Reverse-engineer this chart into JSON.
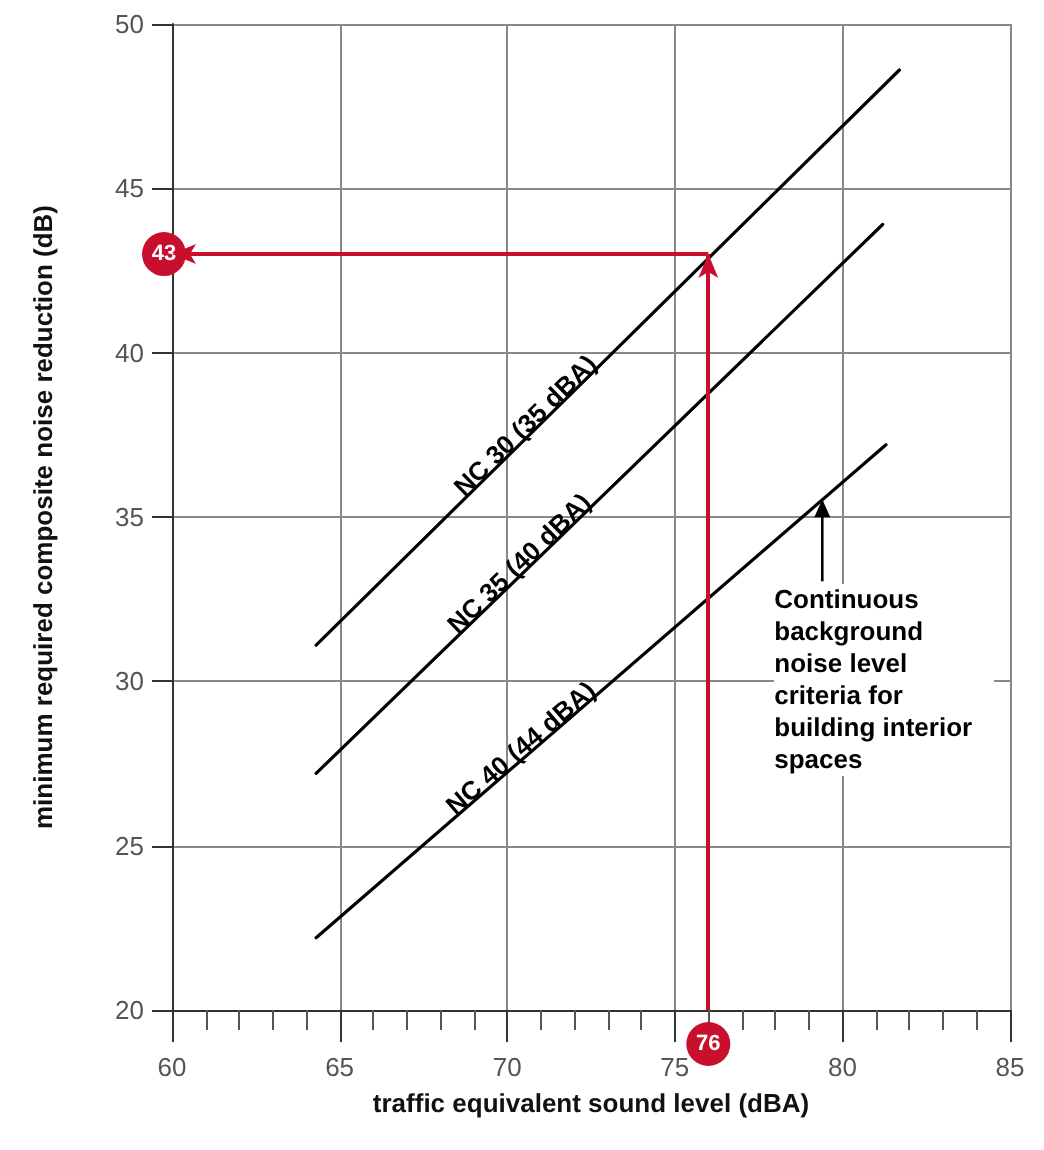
{
  "chart_data": {
    "type": "line",
    "xlabel": "traffic equivalent sound level (dBA)",
    "ylabel": "minimum required composite noise reduction (dB)",
    "xlim": [
      60,
      85
    ],
    "xticks": [
      60,
      65,
      70,
      75,
      80,
      85
    ],
    "ylim": [
      20,
      50
    ],
    "yticks": [
      20,
      25,
      30,
      35,
      40,
      45,
      50
    ],
    "grid": true,
    "legend": false,
    "marker": "none",
    "line_style": "solid",
    "series": [
      {
        "name": "NC 30 (35 dBA)",
        "color": "#000000",
        "x": [
          64.3,
          81.7
        ],
        "values": [
          31.1,
          48.6
        ]
      },
      {
        "name": "NC 35 (40 dBA)",
        "color": "#000000",
        "x": [
          64.3,
          81.2
        ],
        "values": [
          27.2,
          43.9
        ]
      },
      {
        "name": "NC 40 (44 dBA)",
        "color": "#000000",
        "x": [
          64.3,
          81.3
        ],
        "values": [
          22.2,
          37.2
        ]
      }
    ],
    "ref_lines": [
      {
        "axis": "x",
        "value": 76,
        "label": "76",
        "color": "#c8102e"
      },
      {
        "axis": "y",
        "value": 43,
        "label": "43",
        "color": "#c8102e"
      }
    ],
    "annotations": [
      {
        "text": "Continuous background noise level criteria for building interior spaces",
        "x": 79.4,
        "y": 35.6
      }
    ]
  }
}
